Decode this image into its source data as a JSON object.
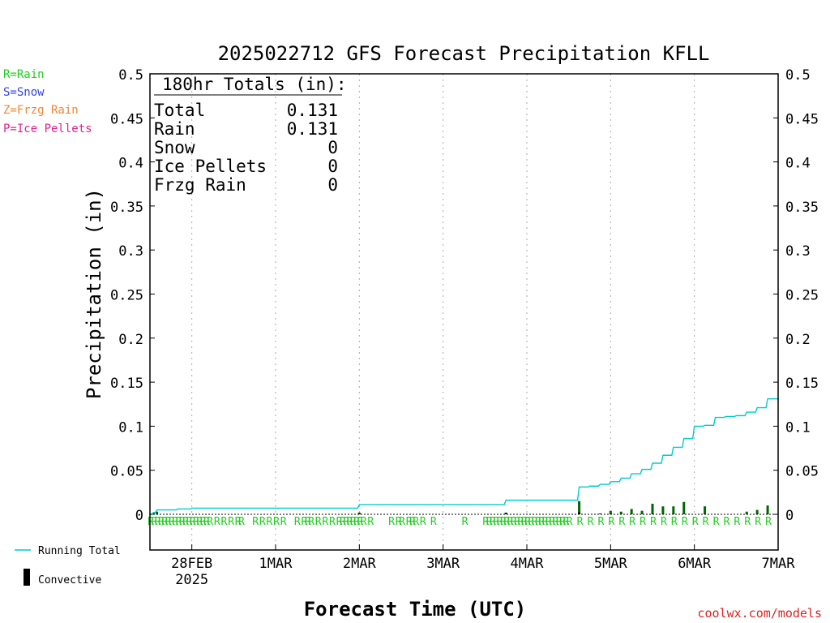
{
  "title": "2025022712 GFS Forecast Precipitation KFLL",
  "ylabel": "Precipitation (in)",
  "xlabel": "Forecast Time (UTC)",
  "credit": "coolwx.com/models",
  "key": {
    "items": [
      {
        "text": "R=Rain",
        "color": "#22cc22"
      },
      {
        "text": "S=Snow",
        "color": "#3344dd"
      },
      {
        "text": "Z=Frzg Rain",
        "color": "#ee8833"
      },
      {
        "text": "P=Ice Pellets",
        "color": "#e0228a"
      }
    ]
  },
  "legend": {
    "running_total": "Running Total",
    "convective": "Convective"
  },
  "totals": {
    "heading": "180hr Totals (in):",
    "rows": [
      {
        "label": "Total",
        "value": "0.131"
      },
      {
        "label": "Rain",
        "value": "0.131"
      },
      {
        "label": "Snow",
        "value": "0"
      },
      {
        "label": "Ice Pellets",
        "value": "0"
      },
      {
        "label": "Frzg Rain",
        "value": "0"
      }
    ]
  },
  "colors": {
    "running_total": "#00cccc",
    "convective": "#000000",
    "rain_bar": "#006600",
    "rain_marker": "#22cc22",
    "grid": "#aaaaaa"
  },
  "chart_data": {
    "type": "bar",
    "title": "2025022712 GFS Forecast Precipitation KFLL",
    "xlabel": "Forecast Time (UTC)",
    "ylabel": "Precipitation (in)",
    "x_unit": "forecast hour from 2025-02-27 12Z",
    "xlim": [
      0,
      180
    ],
    "ylim": [
      0,
      0.5
    ],
    "y_ticks": [
      "0",
      "0.05",
      "0.1",
      "0.15",
      "0.2",
      "0.25",
      "0.3",
      "0.35",
      "0.4",
      "0.45",
      "0.5"
    ],
    "x_ticks": [
      {
        "x": 12,
        "label": "28FEB",
        "sub": "2025"
      },
      {
        "x": 36,
        "label": "1MAR"
      },
      {
        "x": 60,
        "label": "2MAR"
      },
      {
        "x": 84,
        "label": "3MAR"
      },
      {
        "x": 108,
        "label": "4MAR"
      },
      {
        "x": 132,
        "label": "5MAR"
      },
      {
        "x": 156,
        "label": "6MAR"
      },
      {
        "x": 180,
        "label": "7MAR"
      }
    ],
    "grid": "vertical dotted at day boundaries",
    "series": [
      {
        "name": "Running Total",
        "type": "step",
        "points": [
          [
            0,
            0
          ],
          [
            1,
            0.002
          ],
          [
            2,
            0.005
          ],
          [
            8,
            0.006
          ],
          [
            12,
            0.007
          ],
          [
            60,
            0.011
          ],
          [
            102,
            0.016
          ],
          [
            123,
            0.031
          ],
          [
            126,
            0.032
          ],
          [
            129,
            0.034
          ],
          [
            132,
            0.037
          ],
          [
            135,
            0.041
          ],
          [
            138,
            0.046
          ],
          [
            141,
            0.051
          ],
          [
            144,
            0.058
          ],
          [
            147,
            0.067
          ],
          [
            150,
            0.076
          ],
          [
            153,
            0.086
          ],
          [
            156,
            0.1
          ],
          [
            159,
            0.101
          ],
          [
            162,
            0.11
          ],
          [
            165,
            0.111
          ],
          [
            168,
            0.112
          ],
          [
            171,
            0.116
          ],
          [
            174,
            0.121
          ],
          [
            177,
            0.131
          ]
        ]
      },
      {
        "name": "Rain",
        "type": "bar",
        "points": [
          [
            1,
            0.002
          ],
          [
            2,
            0.003
          ],
          [
            60,
            0.002
          ],
          [
            102,
            0.002
          ],
          [
            123,
            0.015
          ],
          [
            129,
            0.001
          ],
          [
            132,
            0.004
          ],
          [
            135,
            0.003
          ],
          [
            138,
            0.006
          ],
          [
            141,
            0.004
          ],
          [
            144,
            0.012
          ],
          [
            147,
            0.009
          ],
          [
            150,
            0.009
          ],
          [
            153,
            0.014
          ],
          [
            159,
            0.009
          ],
          [
            171,
            0.003
          ],
          [
            174,
            0.005
          ],
          [
            177,
            0.01
          ]
        ]
      },
      {
        "name": "Convective",
        "type": "bar",
        "points": [
          [
            60,
            0.001
          ],
          [
            102,
            0.001
          ],
          [
            123,
            0.002
          ]
        ]
      }
    ],
    "precip_type_markers": {
      "symbol": "R",
      "hours": [
        0,
        1,
        2,
        3,
        4,
        5,
        6,
        7,
        8,
        9,
        10,
        11,
        12,
        13,
        14,
        15,
        16,
        17,
        19,
        21,
        23,
        25,
        26,
        30,
        32,
        34,
        36,
        38,
        42,
        44,
        45,
        46,
        48,
        50,
        52,
        54,
        55,
        56,
        57,
        58,
        59,
        60,
        61,
        63,
        69,
        71,
        72,
        74,
        75,
        76,
        78,
        81,
        90,
        96,
        97,
        98,
        99,
        100,
        101,
        102,
        103,
        104,
        105,
        106,
        107,
        108,
        109,
        110,
        111,
        112,
        113,
        114,
        115,
        116,
        117,
        118,
        119,
        120,
        123,
        126,
        129,
        132,
        135,
        138,
        141,
        144,
        147,
        150,
        153,
        156,
        159,
        162,
        165,
        168,
        171,
        174,
        177
      ]
    }
  }
}
